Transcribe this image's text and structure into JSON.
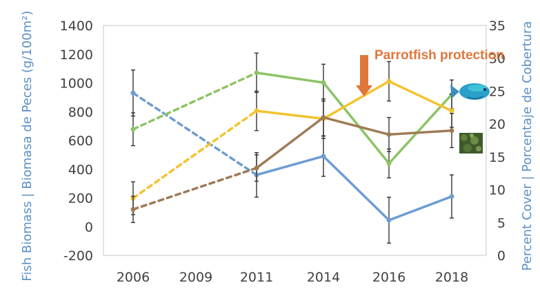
{
  "chart_data": {
    "type": "line",
    "categories": [
      "2006",
      "2009",
      "2011",
      "2014",
      "2016",
      "2018"
    ],
    "x": [
      2006,
      2011,
      2014,
      2016,
      2018
    ],
    "y_left": {
      "label": "Fish Biomass | Biomasa de Peces (g/100m²)",
      "ylim": [
        -200,
        1400
      ],
      "ticks": [
        "-200",
        "0",
        "200",
        "400",
        "600",
        "800",
        "1000",
        "1200",
        "1400"
      ]
    },
    "y_right": {
      "label": "Percent Cover | Porcentaje de Cobertura",
      "ylim": [
        0,
        35
      ],
      "ticks": [
        "0",
        "5",
        "10",
        "15",
        "20",
        "25",
        "30",
        "35"
      ]
    },
    "series": [
      {
        "axis": "left",
        "color": "#6c9cd2",
        "dashed_until": 2011,
        "values": [
          930,
          360,
          490,
          45,
          210
        ],
        "err": [
          160,
          155,
          140,
          160,
          150
        ]
      },
      {
        "axis": "right",
        "color": "#8cc465",
        "dashed_until": 2011,
        "values": [
          19.2,
          27.8,
          26.3,
          14.0,
          24.5
        ],
        "err": [
          2.5,
          3.0,
          2.8,
          2.2,
          2.2
        ]
      },
      {
        "axis": "right",
        "color": "#f5c22e",
        "dashed_until": 2011,
        "values": [
          8.7,
          22.0,
          20.8,
          26.5,
          22.0
        ],
        "err": [
          2.5,
          3.0,
          3.0,
          3.0,
          2.5
        ]
      },
      {
        "axis": "right",
        "color": "#9e7b56",
        "dashed_until": 2011,
        "values": [
          7.0,
          13.3,
          21.0,
          18.4,
          19.0
        ],
        "err": [
          2.0,
          2.0,
          2.8,
          2.6,
          2.6
        ]
      }
    ],
    "annotation": {
      "text": "Parrotfish protection",
      "color": "#e0763a"
    },
    "grid": false
  }
}
